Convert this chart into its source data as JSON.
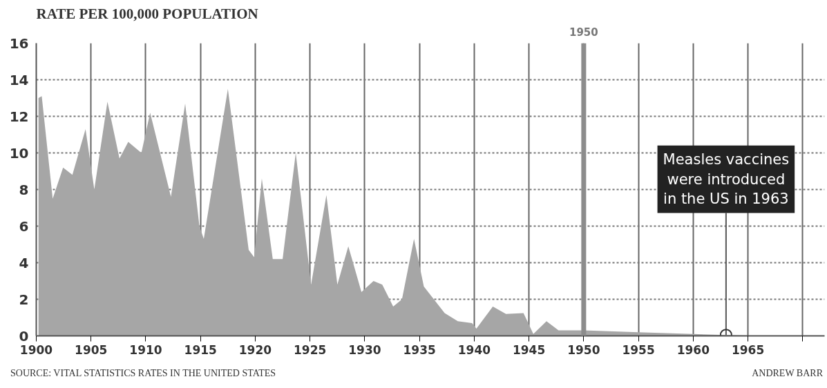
{
  "chart_data": {
    "type": "area",
    "title": "RATE PER 100,000 POPULATION",
    "x": [
      1900.2,
      1900.5,
      1901.5,
      1902.45,
      1903.3,
      1904.5,
      1905.3,
      1906.5,
      1907.6,
      1908.4,
      1909.6,
      1910.4,
      1912.3,
      1913.6,
      1914.9,
      1915.3,
      1917.5,
      1919.4,
      1919.9,
      1920.6,
      1921.6,
      1922.5,
      1923.7,
      1925.1,
      1926.5,
      1927.5,
      1928.5,
      1929.7,
      1930.8,
      1931.6,
      1932.6,
      1933.4,
      1934.5,
      1935.4,
      1937.3,
      1938.5,
      1939.8,
      1940.2,
      1941.7,
      1942.9,
      1944.5,
      1945.4,
      1946.6,
      1947.7,
      1950,
      1955,
      1960,
      1963,
      1965,
      1966
    ],
    "series": [
      {
        "color": "#a6a6a6",
        "values": [
          13.0,
          13.1,
          7.5,
          9.2,
          8.8,
          11.3,
          8.0,
          12.8,
          9.7,
          10.6,
          10.0,
          12.2,
          7.6,
          12.7,
          6.0,
          5.3,
          13.5,
          4.7,
          4.3,
          8.6,
          4.2,
          4.2,
          10.0,
          2.8,
          7.7,
          2.8,
          4.9,
          2.4,
          3.0,
          2.8,
          1.6,
          2.0,
          5.3,
          2.7,
          1.25,
          0.8,
          0.7,
          0.4,
          1.6,
          1.2,
          1.25,
          0.1,
          0.8,
          0.3,
          0.3,
          0.2,
          0.1,
          0.05,
          0.02,
          0
        ]
      }
    ],
    "xlim": [
      1900,
      1972
    ],
    "xticks": [
      1900,
      1905,
      1910,
      1915,
      1920,
      1925,
      1930,
      1935,
      1940,
      1945,
      1950,
      1955,
      1960,
      1965,
      {
        "value": 1970,
        "label": null
      }
    ],
    "ylim": [
      0,
      16
    ],
    "yticks": [
      0,
      2,
      4,
      6,
      8,
      10,
      12,
      14,
      16
    ],
    "grid": true,
    "ref_lines": [
      {
        "axis": "x",
        "value": 1950,
        "label": "1950",
        "color": "#8c8c8c"
      }
    ],
    "annotations": [
      {
        "text": "Measles vaccines were introduced in the US in 1963",
        "x": 1963,
        "y": 0.05
      },
      "SOURCE: VITAL STATISTICS RATES IN THE UNITED STATES",
      "ANDREW BARR"
    ]
  }
}
